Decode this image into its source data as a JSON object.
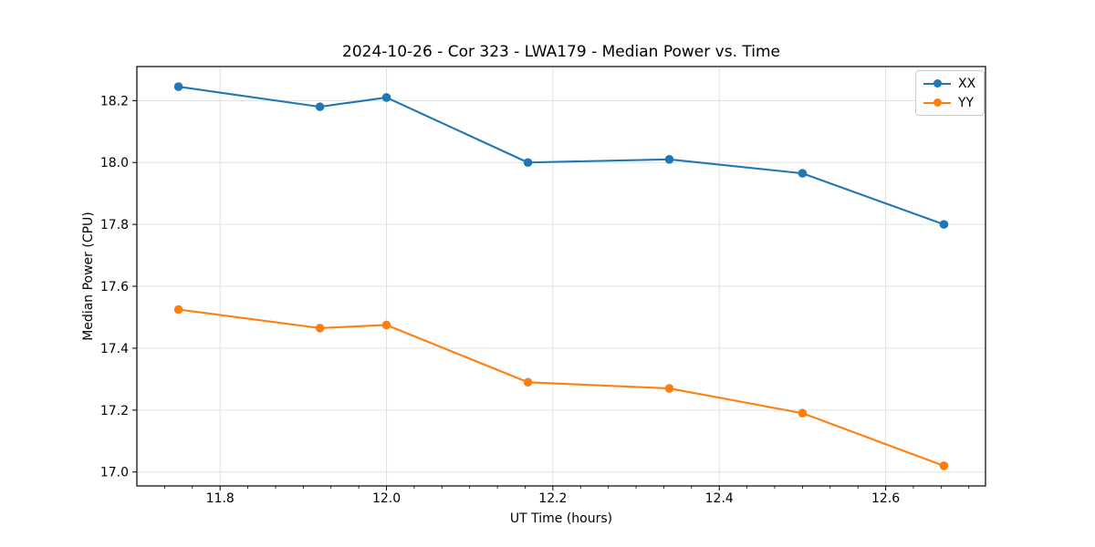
{
  "chart_data": {
    "type": "line",
    "title": "2024-10-26 - Cor 323 - LWA179 - Median Power vs. Time",
    "xlabel": "UT Time (hours)",
    "ylabel": "Median Power (CPU)",
    "x": [
      11.75,
      11.92,
      12.0,
      12.17,
      12.34,
      12.5,
      12.67
    ],
    "series": [
      {
        "name": "XX",
        "color": "#1f77b4",
        "values": [
          18.245,
          18.18,
          18.21,
          18.0,
          18.01,
          17.965,
          17.8
        ]
      },
      {
        "name": "YY",
        "color": "#ff7f0e",
        "values": [
          17.525,
          17.465,
          17.475,
          17.29,
          17.27,
          17.19,
          17.02
        ]
      }
    ],
    "xlim": [
      11.7,
      12.72
    ],
    "ylim": [
      16.955,
      18.31
    ],
    "x_ticks": [
      11.8,
      12.0,
      12.2,
      12.4,
      12.6
    ],
    "x_tick_labels": [
      "11.8",
      "12.0",
      "12.2",
      "12.4",
      "12.6"
    ],
    "y_ticks": [
      17.0,
      17.2,
      17.4,
      17.6,
      17.8,
      18.0,
      18.2
    ],
    "y_tick_labels": [
      "17.0",
      "17.2",
      "17.4",
      "17.6",
      "17.8",
      "18.0",
      "18.2"
    ],
    "x_minor_tick_step": 0.0333333,
    "grid": true,
    "legend_position": "upper right",
    "colors": {
      "grid": "#e0e0e0",
      "spine": "#000000",
      "tick": "#000000",
      "text": "#000000",
      "background": "#ffffff"
    }
  }
}
